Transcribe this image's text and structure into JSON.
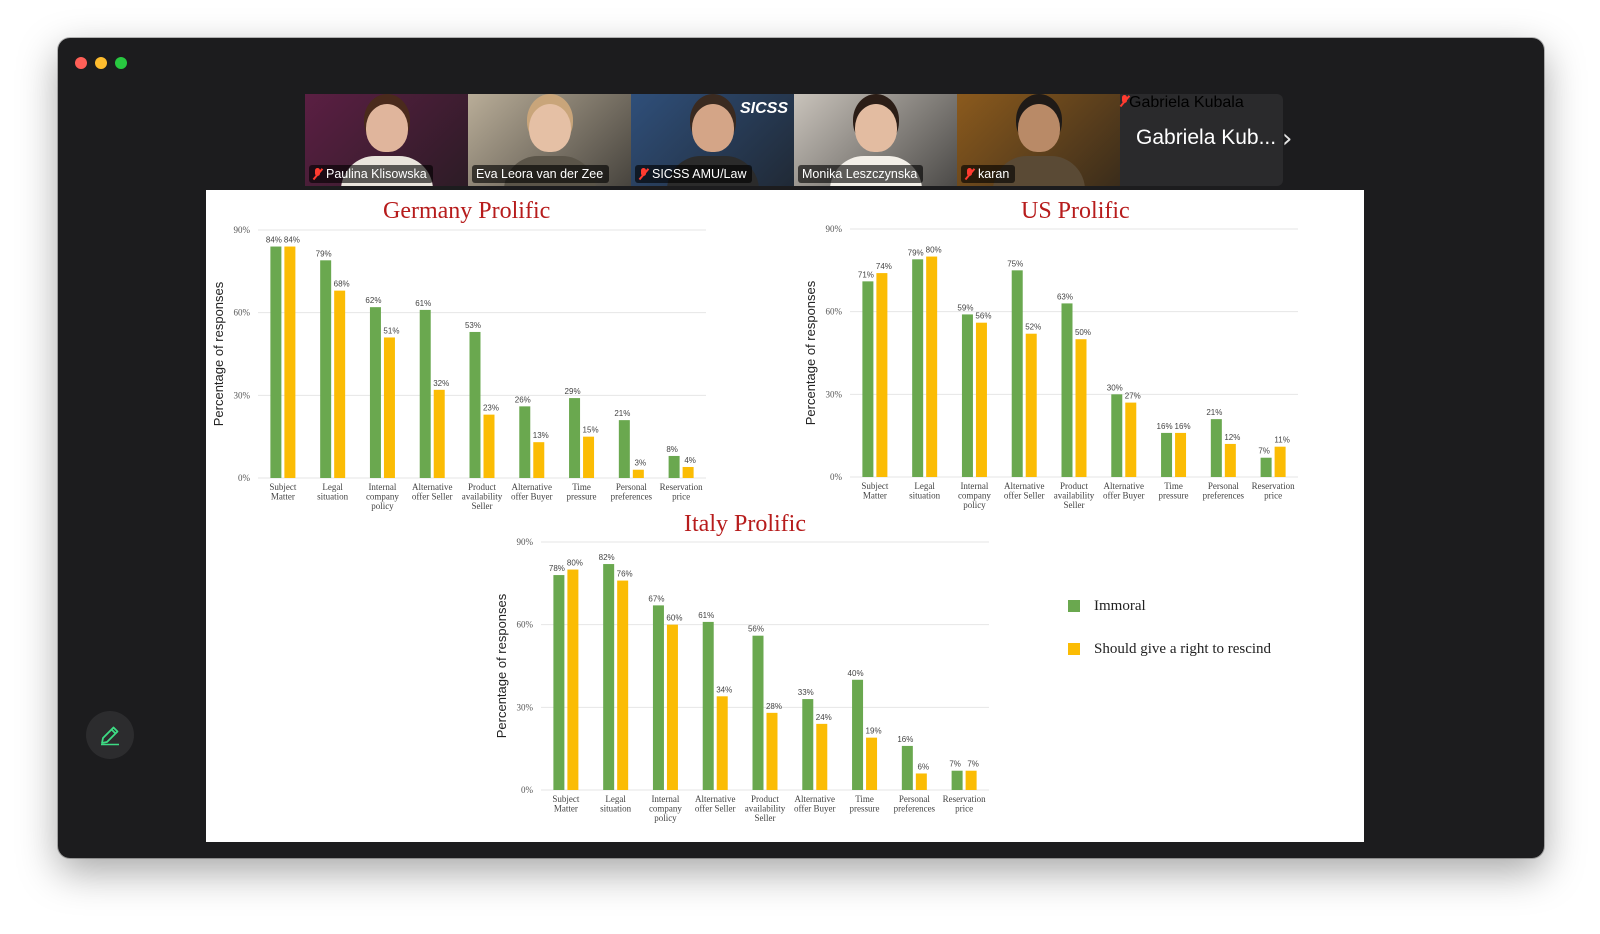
{
  "window": {
    "controls": [
      "close",
      "minimize",
      "zoom"
    ]
  },
  "participants": [
    {
      "name": "Paulina Klisowska",
      "muted": true,
      "active": false,
      "bg": "#5b1f43",
      "skin": "#e0b59c",
      "hair": "#4a2a1c",
      "shirt": "#e9e4dc"
    },
    {
      "name": "Eva Leora van der Zee",
      "muted": false,
      "active": true,
      "bg": "#b9ad98",
      "skin": "#e5c0a5",
      "hair": "#c9a57a",
      "shirt": "#5b5549"
    },
    {
      "name": "SICSS AMU/Law",
      "muted": true,
      "active": false,
      "bg": "#2f4f7a",
      "skin": "#d4a587",
      "hair": "#3a2a20",
      "shirt": "#2b2b2b",
      "logo": "SICSS"
    },
    {
      "name": "Monika Leszczynska",
      "muted": false,
      "active": false,
      "bg": "#c9c3bb",
      "skin": "#e3bca1",
      "hair": "#2b1d16",
      "shirt": "#f3efe8"
    },
    {
      "name": "karan",
      "muted": true,
      "active": false,
      "bg": "#8b5a1d",
      "skin": "#b98a67",
      "hair": "#1f1a17",
      "shirt": "#5a4a35"
    }
  ],
  "overflow_participant": {
    "display": "Gabriela Kub...",
    "name": "Gabriela Kubala",
    "muted": true
  },
  "next_page_icon": "chevron-right-icon",
  "edit_button_icon": "pencil-icon",
  "colors": {
    "immoral": "#6aa84f",
    "rescind": "#fbbc04",
    "title": "#b71c1c"
  },
  "legend": {
    "immoral": "Immoral",
    "rescind": "Should give a right to rescind"
  },
  "chart_data": [
    {
      "type": "bar",
      "title": "Germany Prolific",
      "ylabel": "Percentage of responses",
      "ylim": [
        0,
        90
      ],
      "yticks": [
        "0%",
        "30%",
        "60%",
        "90%"
      ],
      "categories": [
        [
          "Subject",
          "Matter"
        ],
        [
          "Legal",
          "situation"
        ],
        [
          "Internal",
          "company",
          "policy"
        ],
        [
          "Alternative",
          "offer Seller"
        ],
        [
          "Product",
          "availability",
          "Seller"
        ],
        [
          "Alternative",
          "offer Buyer"
        ],
        [
          "Time",
          "pressure"
        ],
        [
          "Personal",
          "preferences"
        ],
        [
          "Reservation",
          "price"
        ]
      ],
      "series": [
        {
          "name": "Immoral",
          "values": [
            84,
            79,
            62,
            61,
            53,
            26,
            29,
            21,
            8
          ]
        },
        {
          "name": "Should give a right to rescind",
          "values": [
            84,
            68,
            51,
            32,
            23,
            13,
            15,
            3,
            4
          ]
        }
      ]
    },
    {
      "type": "bar",
      "title": "US Prolific",
      "ylabel": "Percentage of responses",
      "ylim": [
        0,
        90
      ],
      "yticks": [
        "0%",
        "30%",
        "60%",
        "90%"
      ],
      "categories": [
        [
          "Subject",
          "Matter"
        ],
        [
          "Legal",
          "situation"
        ],
        [
          "Internal",
          "company",
          "policy"
        ],
        [
          "Alternative",
          "offer Seller"
        ],
        [
          "Product",
          "availability",
          "Seller"
        ],
        [
          "Alternative",
          "offer Buyer"
        ],
        [
          "Time",
          "pressure"
        ],
        [
          "Personal",
          "preferences"
        ],
        [
          "Reservation",
          "price"
        ]
      ],
      "series": [
        {
          "name": "Immoral",
          "values": [
            71,
            79,
            59,
            75,
            63,
            30,
            16,
            21,
            7
          ]
        },
        {
          "name": "Should give a right to rescind",
          "values": [
            74,
            80,
            56,
            52,
            50,
            27,
            16,
            12,
            11
          ]
        }
      ]
    },
    {
      "type": "bar",
      "title": "Italy Prolific",
      "ylabel": "Percentage of responses",
      "ylim": [
        0,
        90
      ],
      "yticks": [
        "0%",
        "30%",
        "60%",
        "90%"
      ],
      "categories": [
        [
          "Subject",
          "Matter"
        ],
        [
          "Legal",
          "situation"
        ],
        [
          "Internal",
          "company",
          "policy"
        ],
        [
          "Alternative",
          "offer Seller"
        ],
        [
          "Product",
          "availability",
          "Seller"
        ],
        [
          "Alternative",
          "offer Buyer"
        ],
        [
          "Time",
          "pressure"
        ],
        [
          "Personal",
          "preferences"
        ],
        [
          "Reservation",
          "price"
        ]
      ],
      "series": [
        {
          "name": "Immoral",
          "values": [
            78,
            82,
            67,
            61,
            56,
            33,
            40,
            16,
            7
          ]
        },
        {
          "name": "Should give a right to rescind",
          "values": [
            80,
            76,
            60,
            34,
            28,
            24,
            19,
            6,
            7
          ]
        }
      ]
    }
  ]
}
